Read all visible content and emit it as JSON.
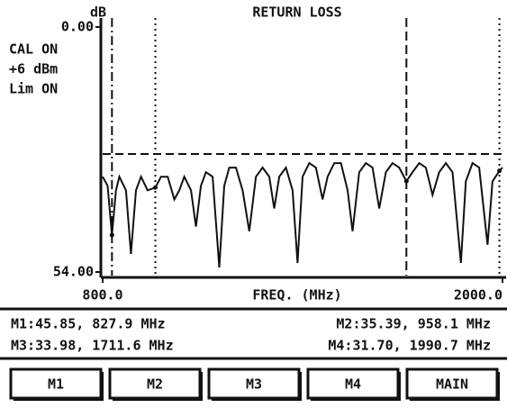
{
  "chart_data": {
    "type": "line",
    "title": "RETURN LOSS",
    "ylabel": "dB",
    "xlabel": "FREQ. (MHz)",
    "ylim": [
      0,
      54
    ],
    "yticks": [
      {
        "value": 0,
        "label": "0.00"
      },
      {
        "value": 54,
        "label": "54.00"
      }
    ],
    "y_inverted": true,
    "xlim": [
      800,
      2000
    ],
    "xticks": [
      {
        "value": 800,
        "label": "800.0"
      },
      {
        "value": 2000,
        "label": "2000.0"
      }
    ],
    "color": "#111111",
    "limit": 28,
    "x": [
      800,
      815,
      827.9,
      840,
      850,
      870,
      885,
      900,
      915,
      935,
      958.1,
      975,
      995,
      1015,
      1030,
      1045,
      1065,
      1080,
      1095,
      1110,
      1130,
      1150,
      1165,
      1180,
      1200,
      1220,
      1240,
      1260,
      1280,
      1300,
      1315,
      1330,
      1350,
      1370,
      1385,
      1400,
      1420,
      1440,
      1460,
      1475,
      1495,
      1515,
      1535,
      1550,
      1570,
      1590,
      1610,
      1630,
      1650,
      1670,
      1690,
      1711.6,
      1730,
      1750,
      1770,
      1790,
      1810,
      1830,
      1850,
      1875,
      1890,
      1910,
      1930,
      1955,
      1970,
      1990.7,
      2000
    ],
    "values": [
      33,
      35,
      45.85,
      36,
      33,
      36,
      50,
      36,
      33,
      36,
      35.39,
      33,
      33,
      38,
      36,
      33,
      36,
      44,
      35,
      32,
      33,
      53,
      35,
      31,
      31,
      36,
      45,
      33,
      31,
      33,
      40,
      33,
      31,
      36,
      52,
      33,
      30,
      31,
      38,
      33,
      30,
      30,
      36,
      45,
      32,
      30,
      31,
      40,
      32,
      30,
      31,
      33.98,
      32,
      30,
      31,
      37,
      32,
      30,
      32,
      52,
      34,
      30,
      31,
      48,
      34,
      31.7,
      31
    ],
    "markers": [
      {
        "readout": "M1:45.85, 827.9 MHz",
        "x": 827.9,
        "y": 45.85,
        "style": "dashdot"
      },
      {
        "readout": "M2:35.39, 958.1 MHz",
        "x": 958.1,
        "y": 35.39,
        "style": "dotted"
      },
      {
        "readout": "M3:33.98, 1711.6 MHz",
        "x": 1711.6,
        "y": 33.98,
        "style": "dashed"
      },
      {
        "readout": "M4:31.70, 1990.7 MHz",
        "x": 1990.7,
        "y": 31.7,
        "style": "dotted"
      }
    ]
  },
  "status": [
    "CAL ON",
    "+6 dBm",
    "Lim ON"
  ],
  "buttons": [
    "M1",
    "M2",
    "M3",
    "M4",
    "MAIN"
  ]
}
